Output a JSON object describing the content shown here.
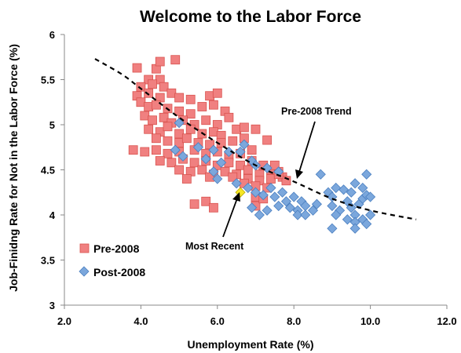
{
  "chart_data": {
    "type": "scatter",
    "title": "Welcome to the Labor Force",
    "xlabel": "Unemployment Rate (%)",
    "ylabel": "Job-Finidng Rate for Not in the Labor Force (%)",
    "xlim": [
      2.0,
      12.0
    ],
    "ylim": [
      3,
      6
    ],
    "x_ticks": [
      "2.0",
      "4.0",
      "6.0",
      "8.0",
      "10.0",
      "12.0"
    ],
    "y_ticks": [
      "3",
      "3.5",
      "4",
      "4.5",
      "5",
      "5.5",
      "6"
    ],
    "grid": false,
    "legend_position": "bottom-left",
    "colors": {
      "pre": "#f08080",
      "pre_stroke": "#d9534f",
      "post": "#7ba7dc",
      "post_stroke": "#4a7fc0",
      "recent": "#f5e625",
      "trend": "#000000"
    },
    "series": [
      {
        "name": "Pre-2008",
        "marker": "square",
        "points": [
          [
            3.9,
            5.63
          ],
          [
            4.4,
            5.62
          ],
          [
            4.5,
            5.7
          ],
          [
            4.9,
            5.72
          ],
          [
            4.2,
            5.5
          ],
          [
            4.5,
            5.5
          ],
          [
            4.0,
            5.42
          ],
          [
            4.3,
            5.45
          ],
          [
            4.6,
            5.42
          ],
          [
            3.9,
            5.32
          ],
          [
            4.2,
            5.35
          ],
          [
            4.5,
            5.3
          ],
          [
            4.8,
            5.35
          ],
          [
            5.0,
            5.3
          ],
          [
            5.3,
            5.28
          ],
          [
            5.8,
            5.32
          ],
          [
            6.0,
            5.35
          ],
          [
            4.0,
            5.25
          ],
          [
            4.2,
            5.2
          ],
          [
            4.4,
            5.22
          ],
          [
            4.7,
            5.18
          ],
          [
            5.0,
            5.15
          ],
          [
            5.3,
            5.12
          ],
          [
            5.6,
            5.2
          ],
          [
            5.9,
            5.22
          ],
          [
            6.2,
            5.15
          ],
          [
            4.1,
            5.1
          ],
          [
            4.3,
            5.05
          ],
          [
            4.6,
            5.08
          ],
          [
            4.8,
            5.02
          ],
          [
            5.1,
            5.05
          ],
          [
            5.4,
            5.0
          ],
          [
            5.7,
            5.05
          ],
          [
            6.0,
            5.0
          ],
          [
            6.3,
            5.08
          ],
          [
            4.2,
            4.95
          ],
          [
            4.5,
            4.92
          ],
          [
            4.7,
            4.98
          ],
          [
            5.0,
            4.9
          ],
          [
            5.3,
            4.95
          ],
          [
            5.6,
            4.9
          ],
          [
            5.9,
            4.92
          ],
          [
            6.1,
            4.88
          ],
          [
            6.5,
            4.95
          ],
          [
            6.7,
            4.97
          ],
          [
            7.0,
            4.95
          ],
          [
            4.4,
            4.85
          ],
          [
            4.7,
            4.82
          ],
          [
            5.0,
            4.8
          ],
          [
            5.2,
            4.85
          ],
          [
            5.5,
            4.8
          ],
          [
            5.8,
            4.78
          ],
          [
            6.1,
            4.8
          ],
          [
            6.4,
            4.82
          ],
          [
            6.7,
            4.85
          ],
          [
            7.3,
            4.83
          ],
          [
            3.8,
            4.72
          ],
          [
            4.1,
            4.7
          ],
          [
            4.4,
            4.72
          ],
          [
            4.7,
            4.68
          ],
          [
            5.0,
            4.7
          ],
          [
            5.4,
            4.72
          ],
          [
            5.7,
            4.68
          ],
          [
            6.0,
            4.7
          ],
          [
            6.3,
            4.65
          ],
          [
            6.6,
            4.68
          ],
          [
            6.9,
            4.72
          ],
          [
            4.5,
            4.6
          ],
          [
            4.8,
            4.58
          ],
          [
            5.1,
            4.62
          ],
          [
            5.4,
            4.58
          ],
          [
            5.7,
            4.6
          ],
          [
            6.0,
            4.55
          ],
          [
            6.3,
            4.58
          ],
          [
            6.6,
            4.55
          ],
          [
            6.9,
            4.6
          ],
          [
            7.2,
            4.55
          ],
          [
            5.0,
            4.5
          ],
          [
            5.3,
            4.48
          ],
          [
            5.6,
            4.5
          ],
          [
            5.9,
            4.45
          ],
          [
            6.2,
            4.48
          ],
          [
            6.5,
            4.45
          ],
          [
            6.8,
            4.5
          ],
          [
            7.1,
            4.45
          ],
          [
            7.4,
            4.5
          ],
          [
            7.6,
            4.48
          ],
          [
            5.2,
            4.4
          ],
          [
            5.8,
            4.42
          ],
          [
            6.4,
            4.42
          ],
          [
            6.8,
            4.4
          ],
          [
            7.1,
            4.38
          ],
          [
            7.4,
            4.4
          ],
          [
            7.7,
            4.42
          ],
          [
            6.7,
            4.35
          ],
          [
            7.0,
            4.32
          ],
          [
            7.3,
            4.3
          ],
          [
            7.8,
            4.38
          ],
          [
            5.4,
            4.12
          ],
          [
            5.7,
            4.15
          ],
          [
            5.9,
            4.08
          ],
          [
            7.0,
            4.2
          ],
          [
            7.0,
            4.1
          ],
          [
            7.2,
            4.18
          ],
          [
            7.6,
            4.45
          ],
          [
            7.5,
            4.55
          ]
        ]
      },
      {
        "name": "Post-2008",
        "marker": "diamond",
        "points": [
          [
            5.0,
            5.02
          ],
          [
            4.9,
            4.72
          ],
          [
            5.1,
            4.65
          ],
          [
            5.5,
            4.75
          ],
          [
            5.9,
            4.72
          ],
          [
            6.3,
            4.7
          ],
          [
            5.7,
            4.62
          ],
          [
            6.1,
            4.58
          ],
          [
            6.6,
            4.7
          ],
          [
            6.7,
            4.78
          ],
          [
            6.9,
            4.6
          ],
          [
            7.0,
            4.55
          ],
          [
            7.3,
            4.52
          ],
          [
            7.6,
            4.48
          ],
          [
            5.9,
            4.48
          ],
          [
            6.0,
            4.4
          ],
          [
            6.5,
            4.35
          ],
          [
            6.8,
            4.3
          ],
          [
            7.0,
            4.25
          ],
          [
            7.2,
            4.22
          ],
          [
            7.4,
            4.3
          ],
          [
            7.5,
            4.2
          ],
          [
            7.7,
            4.25
          ],
          [
            7.8,
            4.15
          ],
          [
            8.0,
            4.2
          ],
          [
            8.2,
            4.15
          ],
          [
            7.9,
            4.08
          ],
          [
            8.1,
            4.05
          ],
          [
            8.3,
            4.1
          ],
          [
            8.5,
            4.05
          ],
          [
            8.6,
            4.12
          ],
          [
            8.7,
            4.45
          ],
          [
            8.9,
            4.25
          ],
          [
            9.0,
            4.2
          ],
          [
            9.1,
            4.3
          ],
          [
            9.3,
            4.28
          ],
          [
            9.5,
            4.25
          ],
          [
            9.6,
            4.35
          ],
          [
            9.8,
            4.3
          ],
          [
            9.9,
            4.45
          ],
          [
            9.0,
            4.1
          ],
          [
            9.2,
            4.05
          ],
          [
            9.4,
            4.15
          ],
          [
            9.5,
            4.08
          ],
          [
            9.6,
            4.0
          ],
          [
            9.7,
            4.12
          ],
          [
            9.8,
            4.18
          ],
          [
            9.9,
            4.22
          ],
          [
            10.0,
            4.0
          ],
          [
            7.3,
            4.05
          ],
          [
            7.6,
            4.1
          ],
          [
            8.1,
            4.0
          ],
          [
            8.3,
            4.0
          ],
          [
            9.1,
            4.0
          ],
          [
            9.4,
            3.95
          ],
          [
            9.6,
            3.92
          ],
          [
            9.8,
            3.95
          ],
          [
            9.0,
            3.85
          ],
          [
            9.6,
            3.85
          ],
          [
            9.9,
            3.9
          ],
          [
            10.0,
            4.2
          ],
          [
            7.1,
            4.0
          ],
          [
            6.9,
            4.08
          ]
        ]
      }
    ],
    "highlight": {
      "x": 6.6,
      "y": 4.25
    },
    "trend": {
      "name": "Pre-2008 Trend",
      "style": "dashed",
      "points": [
        [
          2.8,
          5.73
        ],
        [
          3.5,
          5.56
        ],
        [
          4.0,
          5.4
        ],
        [
          5.0,
          5.08
        ],
        [
          6.0,
          4.8
        ],
        [
          7.0,
          4.55
        ],
        [
          8.0,
          4.37
        ],
        [
          9.0,
          4.18
        ],
        [
          10.0,
          4.05
        ],
        [
          11.2,
          3.95
        ]
      ]
    },
    "legend": {
      "pre_label": "Pre-2008",
      "post_label": "Post-2008"
    },
    "annotations": {
      "trend_label": "Pre-2008 Trend",
      "recent_label": "Most Recent"
    }
  }
}
